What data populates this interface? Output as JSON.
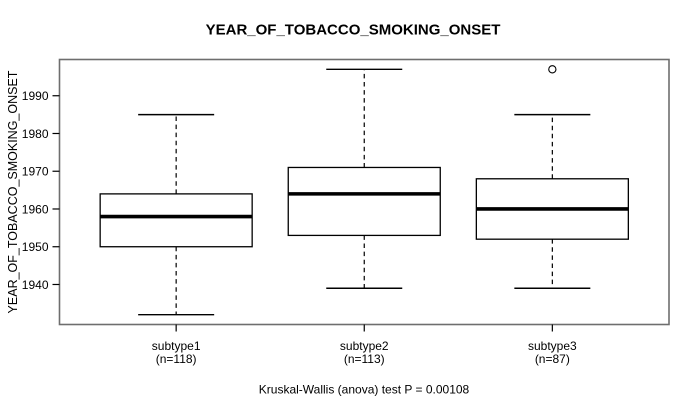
{
  "chart_data": {
    "type": "boxplot",
    "title": "YEAR_OF_TOBACCO_SMOKING_ONSET",
    "ylabel": "YEAR_OF_TOBACCO_SMOKING_ONSET",
    "xlabel": "",
    "caption": "Kruskal-Wallis (anova) test P = 0.00108",
    "ylim": [
      1929.4,
      1999.6
    ],
    "yticks": [
      1940,
      1950,
      1960,
      1970,
      1980,
      1990
    ],
    "grid": false,
    "legend": null,
    "groups": [
      {
        "label": "subtype1",
        "n_label": "(n=118)",
        "n": 118,
        "whisker_low": 1932,
        "q1": 1950,
        "median": 1958,
        "q3": 1964,
        "whisker_high": 1985,
        "outliers": []
      },
      {
        "label": "subtype2",
        "n_label": "(n=113)",
        "n": 113,
        "whisker_low": 1939,
        "q1": 1953,
        "median": 1964,
        "q3": 1971,
        "whisker_high": 1997,
        "outliers": []
      },
      {
        "label": "subtype3",
        "n_label": "(n=87)",
        "n": 87,
        "whisker_low": 1939,
        "q1": 1952,
        "median": 1960,
        "q3": 1968,
        "whisker_high": 1985,
        "outliers": [
          1997
        ]
      }
    ],
    "colors": {
      "line": "#000000",
      "median": "#000000",
      "box_fill": "#ffffff",
      "frame": "#6e6e6e",
      "background": "#ffffff",
      "text": "#000000"
    }
  }
}
